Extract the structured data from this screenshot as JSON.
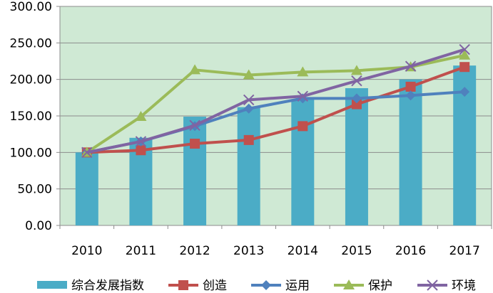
{
  "chart_data": {
    "type": "bar+line",
    "categories": [
      "2010",
      "2011",
      "2012",
      "2013",
      "2014",
      "2015",
      "2016",
      "2017"
    ],
    "ylim": [
      0,
      300
    ],
    "yticks": [
      "0.00",
      "50.00",
      "100.00",
      "150.00",
      "200.00",
      "250.00",
      "300.00"
    ],
    "grid": true,
    "legend_position": "bottom",
    "plot_background": "#cfe9d4",
    "series": [
      {
        "name": "综合发展指数",
        "kind": "bar",
        "color": "#4bacc6",
        "values": [
          100,
          120,
          149,
          162,
          173,
          188,
          200,
          219
        ]
      },
      {
        "name": "创造",
        "kind": "line",
        "marker": "square",
        "color": "#c0504d",
        "values": [
          100,
          103,
          112,
          117,
          136,
          166,
          190,
          217
        ]
      },
      {
        "name": "运用",
        "kind": "line",
        "marker": "diamond",
        "color": "#4f81bd",
        "values": [
          100,
          115,
          136,
          160,
          174,
          174,
          178,
          183
        ]
      },
      {
        "name": "保护",
        "kind": "line",
        "marker": "triangle",
        "color": "#9bbb59",
        "values": [
          100,
          149,
          213,
          206,
          210,
          212,
          217,
          233
        ]
      },
      {
        "name": "环境",
        "kind": "line",
        "marker": "x",
        "color": "#8064a2",
        "values": [
          100,
          115,
          137,
          172,
          177,
          198,
          218,
          241
        ]
      }
    ]
  }
}
